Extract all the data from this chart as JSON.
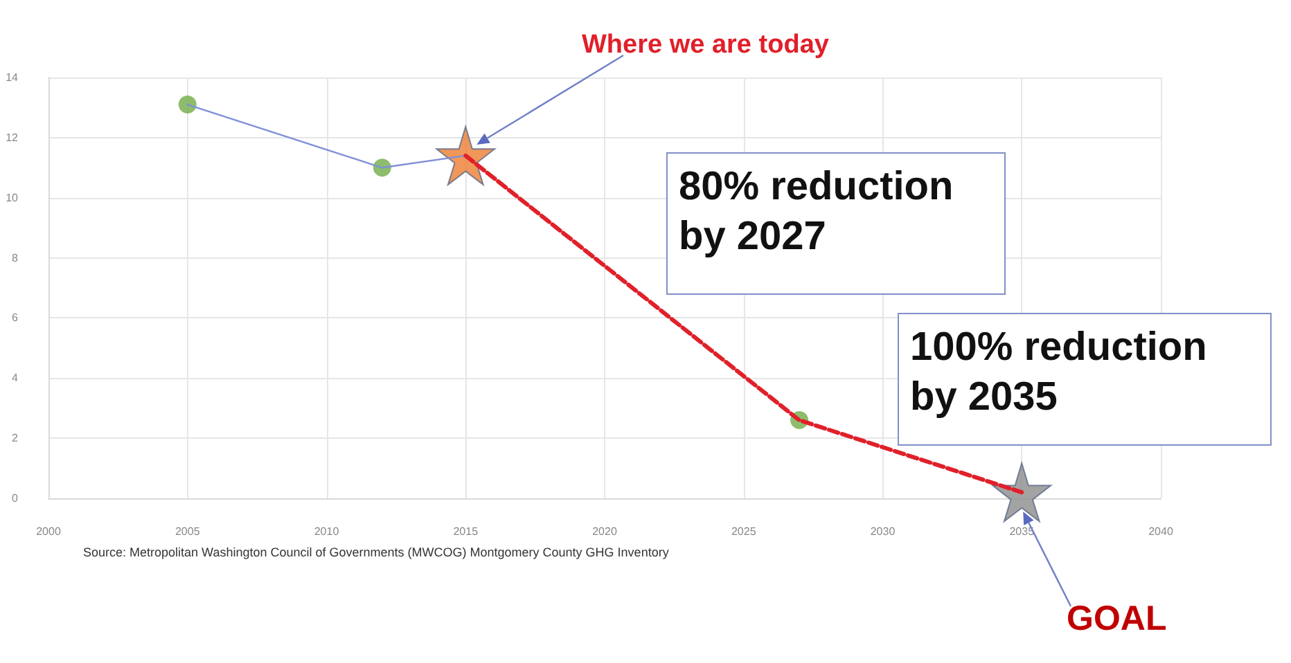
{
  "chart_data": {
    "type": "line",
    "xlim": [
      2000,
      2040
    ],
    "xticks": [
      2000,
      2005,
      2010,
      2015,
      2020,
      2025,
      2030,
      2035,
      2040
    ],
    "ylim": [
      0,
      14
    ],
    "yticks": [
      0,
      2,
      4,
      6,
      8,
      10,
      12,
      14
    ],
    "grid": true,
    "series": [
      {
        "type": "line",
        "color": "#7f8fd8",
        "x": [
          2005,
          2012,
          2015
        ],
        "values": [
          13.1,
          11.0,
          11.4
        ],
        "marker": "none",
        "line_style": "solid"
      },
      {
        "type": "line",
        "color": "#e0202a",
        "x": [
          2015,
          2027,
          2035
        ],
        "values": [
          11.4,
          2.6,
          0.2
        ],
        "marker": "none",
        "line_style": "dashed"
      },
      {
        "type": "scatter",
        "color": "#70ad47",
        "x": [
          2005,
          2012,
          2027
        ],
        "values": [
          13.1,
          11.0,
          2.6
        ],
        "marker": "circle"
      },
      {
        "type": "scatter",
        "color": "#ed7d31",
        "x": [
          2015
        ],
        "values": [
          11.4
        ],
        "marker": "star"
      },
      {
        "type": "scatter",
        "color": "#8c8c8c",
        "x": [
          2035
        ],
        "values": [
          0.2
        ],
        "marker": "star"
      }
    ],
    "annotations": [
      "Where we are today",
      "80% reduction by 2027",
      "100% reduction by 2035",
      "GOAL",
      "Source: Metropolitan Washington Council of Governments (MWCOG) Montgomery County GHG Inventory"
    ]
  }
}
